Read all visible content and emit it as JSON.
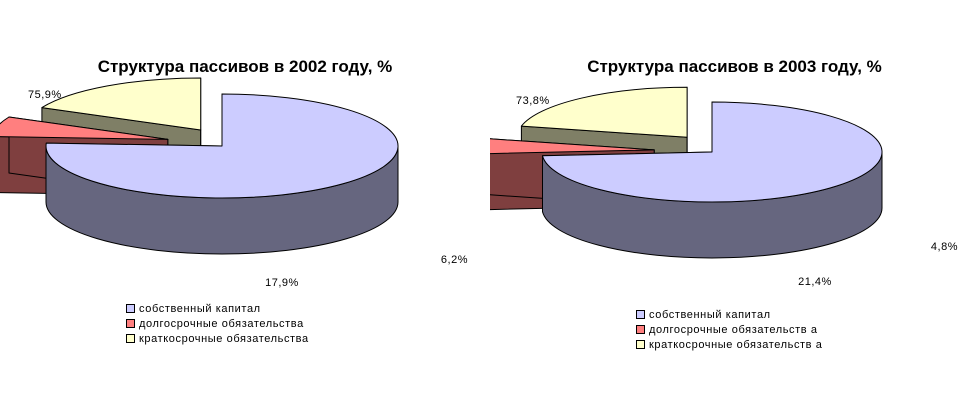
{
  "chart_data": [
    {
      "type": "pie",
      "title": "Структура пассивов в 2002 году, %",
      "categories": [
        "собственный капитал",
        "долгосрочные обязательства",
        "краткосрочные обязательства"
      ],
      "values": [
        75.9,
        6.2,
        17.9
      ],
      "data_labels": [
        "75,9%",
        "6,2%",
        "17,9%"
      ],
      "colors": [
        "#ccccff",
        "#ff7f7f",
        "#ffffcc"
      ],
      "side_colors": [
        "#66667f",
        "#7f3f3f",
        "#7f7f66"
      ],
      "legend_labels": [
        "собственный капитал",
        "долгосрочные обязательства",
        "краткосрочные обязательства"
      ],
      "legend": "bottom",
      "style": "3d-exploded"
    },
    {
      "type": "pie",
      "title": "Структура пассивов в 2003 году, %",
      "categories": [
        "собственный капитал",
        "долгосрочные обязательства",
        "краткосрочные обязательства"
      ],
      "values": [
        73.8,
        4.8,
        21.4
      ],
      "data_labels": [
        "73,8%",
        "4,8%",
        "21,4%"
      ],
      "colors": [
        "#ccccff",
        "#ff7f7f",
        "#ffffcc"
      ],
      "side_colors": [
        "#66667f",
        "#7f3f3f",
        "#7f7f66"
      ],
      "legend_labels": [
        "собственный капитал",
        "долгосрочные обязательств а",
        "краткосрочные обязательств а"
      ],
      "legend": "bottom",
      "style": "3d-exploded"
    }
  ]
}
